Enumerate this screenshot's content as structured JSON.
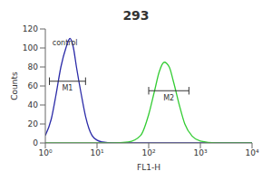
{
  "chart_data": {
    "type": "line",
    "title": "293",
    "x_label": "FL1-H",
    "y_label": "Counts",
    "log": "x",
    "grid": false,
    "xlim": [
      1,
      10000
    ],
    "xticks": [
      {
        "value": 1,
        "label": "10⁰"
      },
      {
        "value": 10,
        "label": "10¹"
      },
      {
        "value": 100,
        "label": "10²"
      },
      {
        "value": 1000,
        "label": "10³"
      },
      {
        "value": 10000,
        "label": "10⁴"
      }
    ],
    "ylim": [
      0,
      120
    ],
    "yticks": [
      0,
      20,
      40,
      60,
      80,
      100,
      120
    ],
    "x": [
      1,
      1.3,
      1.6,
      2,
      2.5,
      3,
      3.5,
      4,
      5,
      6,
      7,
      8,
      10,
      13,
      20,
      40,
      70,
      100,
      130,
      160,
      200,
      250,
      300,
      400,
      500,
      700,
      1000,
      2000,
      5000,
      10000
    ],
    "series": [
      {
        "name": "control",
        "color": "#2b2ba8",
        "values": [
          8,
          25,
          50,
          80,
          100,
          110,
          100,
          80,
          50,
          28,
          15,
          8,
          3,
          1,
          0,
          0,
          0,
          0,
          0,
          0,
          0,
          0,
          0,
          0,
          0,
          0,
          0,
          0,
          0,
          0
        ]
      },
      {
        "name": "293",
        "color": "#33cc33",
        "values": [
          0,
          0,
          0,
          0,
          0,
          0,
          0,
          0,
          0,
          0,
          0,
          0,
          0,
          0,
          0,
          1,
          8,
          30,
          55,
          75,
          85,
          80,
          65,
          38,
          20,
          7,
          2,
          0,
          0,
          0
        ]
      }
    ],
    "annotations": [
      {
        "text": "control",
        "x": 2.4,
        "y": 106
      },
      {
        "text": "M1",
        "x1": 1.2,
        "x2": 6,
        "y": 65
      },
      {
        "text": "M2",
        "x1": 100,
        "x2": 600,
        "y": 55
      }
    ]
  }
}
